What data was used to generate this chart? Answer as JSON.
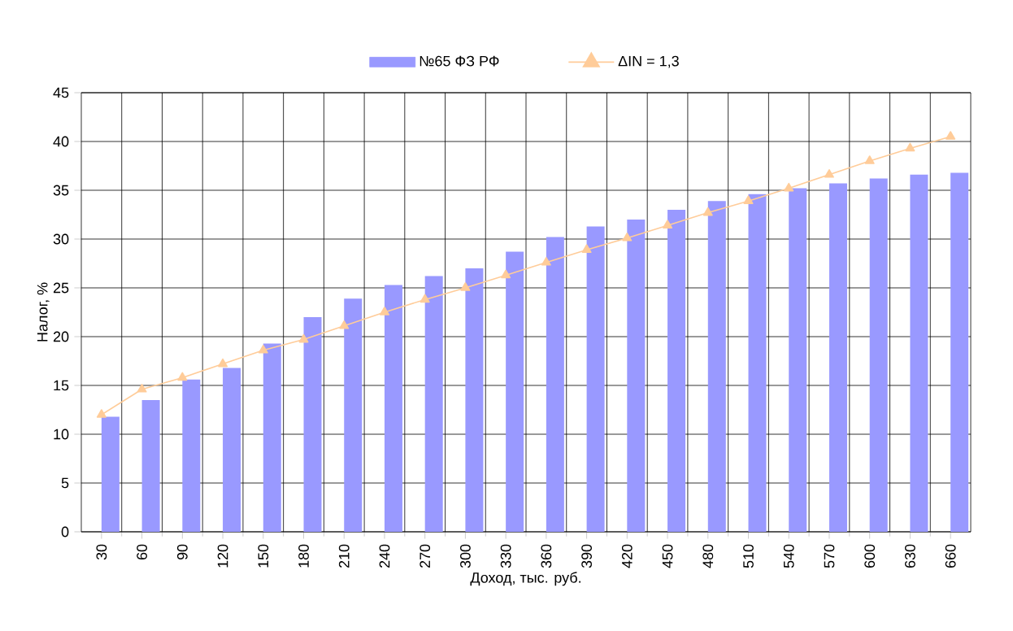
{
  "chart_data": {
    "type": "bar",
    "xlabel": "Доход, тыс. руб.",
    "ylabel": "Налог, %",
    "categories": [
      "30",
      "60",
      "90",
      "120",
      "150",
      "180",
      "210",
      "240",
      "270",
      "300",
      "330",
      "360",
      "390",
      "420",
      "450",
      "480",
      "510",
      "540",
      "570",
      "600",
      "630",
      "660"
    ],
    "series": [
      {
        "name": "№65 ФЗ РФ",
        "color": "#9999ff",
        "values": [
          11.8,
          13.5,
          15.6,
          16.8,
          19.3,
          22.0,
          23.9,
          25.3,
          26.2,
          27.0,
          28.7,
          30.2,
          31.3,
          32.0,
          33.0,
          33.9,
          34.6,
          35.2,
          35.7,
          36.2,
          36.6,
          36.8
        ]
      },
      {
        "name": "ΔIN  = 1,3",
        "type": "line",
        "color": "#ffcc99",
        "marker": "triangle",
        "values": [
          12.0,
          14.6,
          15.8,
          17.2,
          18.6,
          19.7,
          21.1,
          22.5,
          23.8,
          25.0,
          26.3,
          27.6,
          28.9,
          30.1,
          31.4,
          32.7,
          33.9,
          35.2,
          36.6,
          38.0,
          39.3,
          40.5
        ]
      }
    ],
    "ylim": [
      0,
      45
    ],
    "yticks": [
      0,
      5,
      10,
      15,
      20,
      25,
      30,
      35,
      40,
      45
    ],
    "grid": true,
    "legend": "top"
  }
}
